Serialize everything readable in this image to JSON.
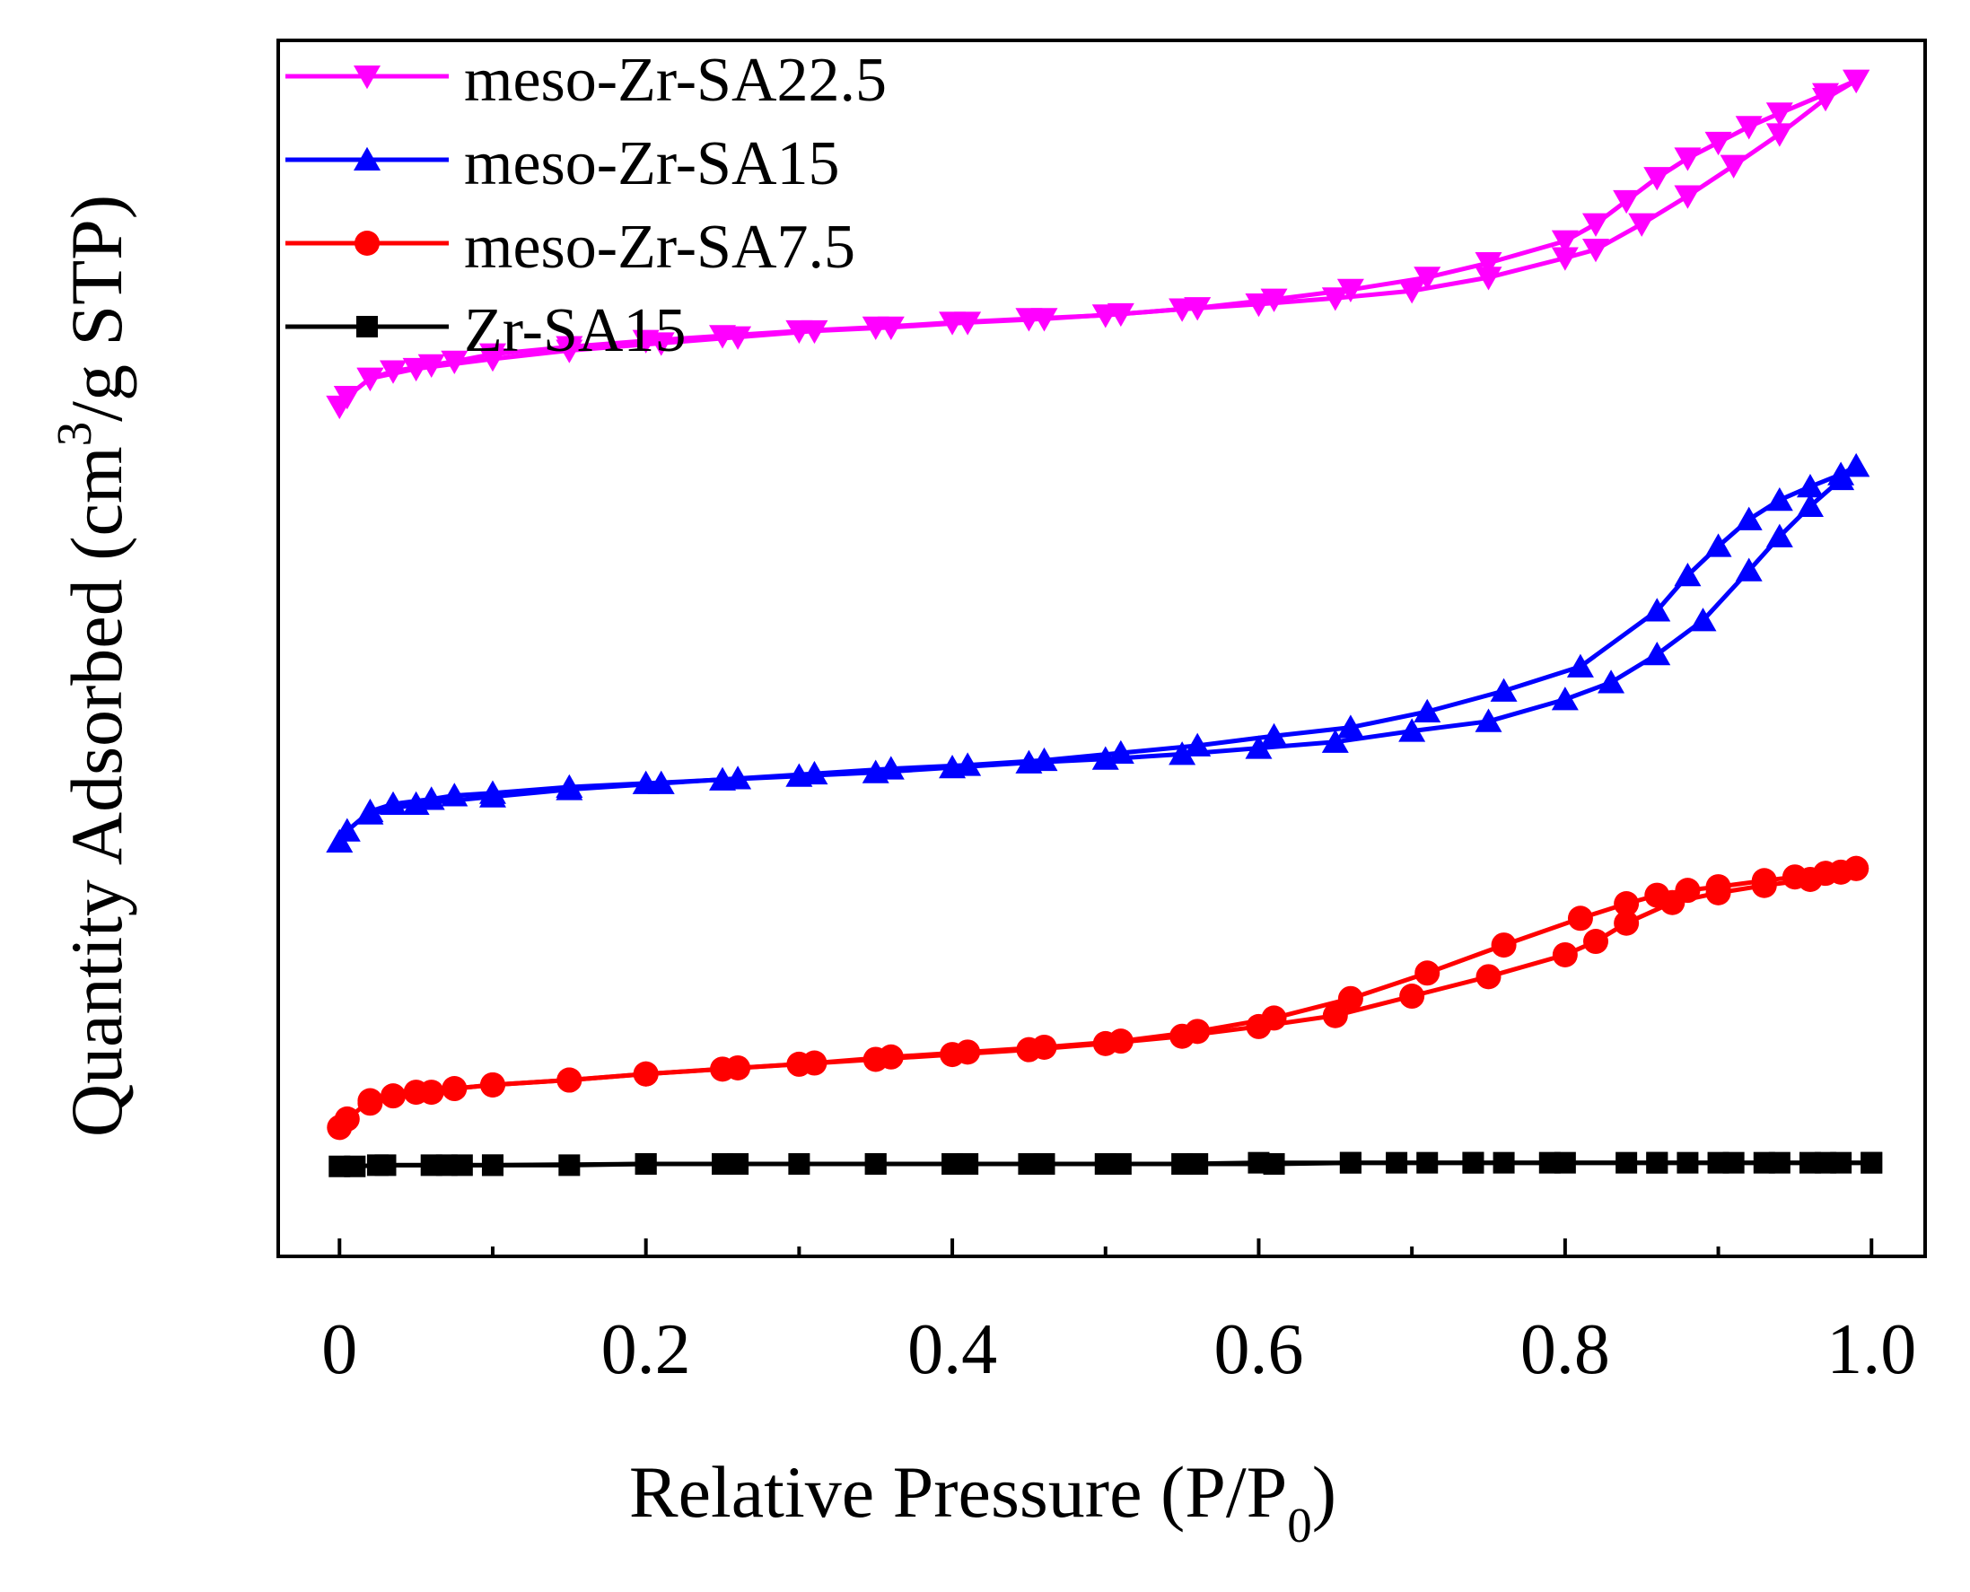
{
  "chart_data": {
    "type": "line",
    "title": "",
    "xlabel": "Relative Pressure (P/P",
    "xlabel_sub": "0",
    "xlabel_close": ")",
    "ylabel": "Quantity Adsorbed (cm",
    "ylabel_sup": "3",
    "ylabel_close": "/g STP)",
    "xlim": [
      -0.04,
      1.035
    ],
    "ylim": [
      0,
      100
    ],
    "xticks": [
      0,
      0.2,
      0.4,
      0.6,
      0.8,
      1.0
    ],
    "xtick_labels": [
      "0",
      "0.2",
      "0.4",
      "0.6",
      "0.8",
      "1.0"
    ],
    "yticks_shown": false,
    "legend_position": "top-left",
    "series": [
      {
        "name": "meso-Zr-SA22.5",
        "color": "#ff00ff",
        "marker": "triangle-down",
        "adsorption": {
          "x": [
            0.0,
            0.005,
            0.02,
            0.035,
            0.06,
            0.075,
            0.1,
            0.15,
            0.2,
            0.25,
            0.3,
            0.35,
            0.4,
            0.45,
            0.5,
            0.55,
            0.6,
            0.65,
            0.7,
            0.75,
            0.8,
            0.82,
            0.85,
            0.88,
            0.91,
            0.94,
            0.97,
            0.99
          ],
          "y": [
            69.9,
            70.7,
            72.2,
            72.8,
            73.3,
            73.6,
            74.2,
            74.8,
            75.3,
            75.7,
            76.1,
            76.4,
            76.8,
            77.1,
            77.4,
            77.9,
            78.3,
            78.8,
            79.4,
            80.5,
            82.1,
            82.8,
            84.9,
            87.2,
            89.7,
            92.3,
            95.2,
            96.7
          ]
        },
        "desorption": {
          "x": [
            0.99,
            0.97,
            0.94,
            0.92,
            0.9,
            0.88,
            0.86,
            0.84,
            0.82,
            0.8,
            0.75,
            0.71,
            0.66,
            0.61,
            0.56,
            0.51,
            0.46,
            0.41,
            0.36,
            0.31,
            0.26,
            0.21,
            0.15,
            0.1,
            0.05,
            0.02
          ],
          "y": [
            96.7,
            95.6,
            94.0,
            92.9,
            91.6,
            90.3,
            88.7,
            86.8,
            84.9,
            83.5,
            81.7,
            80.5,
            79.5,
            78.7,
            78.0,
            77.5,
            77.1,
            76.8,
            76.4,
            76.1,
            75.6,
            75.1,
            74.5,
            73.8,
            73.0,
            72.2
          ]
        }
      },
      {
        "name": "meso-Zr-SA15",
        "color": "#0000ff",
        "marker": "triangle-up",
        "adsorption": {
          "x": [
            0.0,
            0.005,
            0.02,
            0.035,
            0.06,
            0.075,
            0.1,
            0.15,
            0.2,
            0.25,
            0.3,
            0.35,
            0.4,
            0.45,
            0.5,
            0.55,
            0.6,
            0.65,
            0.7,
            0.75,
            0.8,
            0.83,
            0.86,
            0.89,
            0.92,
            0.94,
            0.96,
            0.98,
            0.99
          ],
          "y": [
            34.1,
            35.0,
            36.6,
            37.2,
            37.6,
            37.9,
            38.1,
            38.6,
            38.9,
            39.2,
            39.5,
            39.8,
            40.2,
            40.6,
            40.9,
            41.3,
            41.8,
            42.3,
            43.2,
            44.0,
            45.8,
            47.2,
            49.5,
            52.3,
            56.4,
            59.2,
            61.7,
            63.9,
            65.0
          ]
        },
        "desorption": {
          "x": [
            0.99,
            0.98,
            0.96,
            0.94,
            0.92,
            0.9,
            0.88,
            0.86,
            0.81,
            0.76,
            0.71,
            0.66,
            0.61,
            0.56,
            0.51,
            0.46,
            0.41,
            0.36,
            0.31,
            0.26,
            0.21,
            0.15,
            0.1,
            0.05,
            0.02
          ],
          "y": [
            65.0,
            64.3,
            63.3,
            62.2,
            60.6,
            58.4,
            56.0,
            53.1,
            48.5,
            46.5,
            44.8,
            43.5,
            42.8,
            42.0,
            41.4,
            40.8,
            40.4,
            40.1,
            39.7,
            39.3,
            38.9,
            38.4,
            37.8,
            37.2,
            36.4
          ]
        }
      },
      {
        "name": "meso-Zr-SA7.5",
        "color": "#ff0000",
        "marker": "circle",
        "adsorption": {
          "x": [
            0.0,
            0.005,
            0.02,
            0.035,
            0.06,
            0.075,
            0.1,
            0.15,
            0.2,
            0.25,
            0.3,
            0.35,
            0.4,
            0.45,
            0.5,
            0.55,
            0.6,
            0.65,
            0.7,
            0.75,
            0.8,
            0.82,
            0.84,
            0.87,
            0.9,
            0.93,
            0.96,
            0.98,
            0.99
          ],
          "y": [
            10.6,
            11.3,
            12.8,
            13.2,
            13.5,
            13.8,
            14.1,
            14.5,
            15.0,
            15.4,
            15.8,
            16.2,
            16.6,
            17.0,
            17.5,
            18.1,
            18.9,
            19.8,
            21.4,
            23.0,
            24.8,
            25.9,
            27.4,
            29.1,
            29.9,
            30.5,
            31.0,
            31.6,
            31.9
          ]
        },
        "desorption": {
          "x": [
            0.99,
            0.97,
            0.95,
            0.93,
            0.9,
            0.88,
            0.86,
            0.84,
            0.81,
            0.76,
            0.71,
            0.66,
            0.61,
            0.56,
            0.51,
            0.46,
            0.41,
            0.36,
            0.31,
            0.26,
            0.2,
            0.15,
            0.1,
            0.05,
            0.02
          ],
          "y": [
            31.9,
            31.5,
            31.2,
            30.9,
            30.4,
            30.1,
            29.7,
            29.0,
            27.8,
            25.6,
            23.3,
            21.2,
            19.6,
            18.5,
            17.7,
            17.2,
            16.8,
            16.4,
            15.9,
            15.5,
            15.0,
            14.5,
            14.1,
            13.5,
            12.6
          ]
        }
      },
      {
        "name": "Zr-SA15",
        "color": "#000000",
        "marker": "square",
        "adsorption": {
          "x": [
            0.0,
            0.01,
            0.025,
            0.06,
            0.08,
            0.1,
            0.15,
            0.2,
            0.25,
            0.3,
            0.35,
            0.4,
            0.45,
            0.5,
            0.55,
            0.6,
            0.66,
            0.69,
            0.71,
            0.74,
            0.76,
            0.8,
            0.84,
            0.86,
            0.88,
            0.91,
            0.93,
            0.96,
            0.98,
            1.0
          ],
          "y": [
            7.4,
            7.4,
            7.5,
            7.5,
            7.5,
            7.5,
            7.5,
            7.6,
            7.6,
            7.6,
            7.6,
            7.6,
            7.6,
            7.6,
            7.6,
            7.7,
            7.7,
            7.7,
            7.7,
            7.7,
            7.7,
            7.7,
            7.7,
            7.7,
            7.7,
            7.7,
            7.7,
            7.7,
            7.7,
            7.7
          ]
        },
        "desorption": {
          "x": [
            1.0,
            0.97,
            0.94,
            0.9,
            0.86,
            0.79,
            0.74,
            0.66,
            0.61,
            0.56,
            0.51,
            0.46,
            0.41,
            0.35,
            0.26,
            0.2,
            0.1,
            0.07,
            0.03
          ],
          "y": [
            7.7,
            7.7,
            7.7,
            7.7,
            7.7,
            7.7,
            7.7,
            7.7,
            7.6,
            7.6,
            7.6,
            7.6,
            7.6,
            7.6,
            7.6,
            7.6,
            7.5,
            7.5,
            7.5
          ]
        }
      }
    ]
  }
}
